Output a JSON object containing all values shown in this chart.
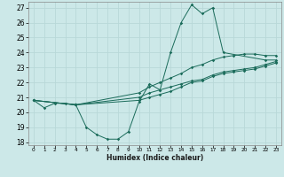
{
  "title": "",
  "xlabel": "Humidex (Indice chaleur)",
  "ylabel": "",
  "bg_color": "#cce8e8",
  "grid_color": "#b8d8d8",
  "line_color": "#1a6b5a",
  "xlim": [
    -0.5,
    23.5
  ],
  "ylim": [
    17.8,
    27.4
  ],
  "xticks": [
    0,
    1,
    2,
    3,
    4,
    5,
    6,
    7,
    8,
    9,
    10,
    11,
    12,
    13,
    14,
    15,
    16,
    17,
    18,
    19,
    20,
    21,
    22,
    23
  ],
  "yticks": [
    18,
    19,
    20,
    21,
    22,
    23,
    24,
    25,
    26,
    27
  ],
  "series": [
    {
      "x": [
        0,
        1,
        2,
        3,
        4,
        5,
        6,
        7,
        8,
        9,
        10,
        11,
        12,
        13,
        14,
        15,
        16,
        17,
        18,
        22,
        23
      ],
      "y": [
        20.8,
        20.3,
        20.6,
        20.6,
        20.5,
        19.0,
        18.5,
        18.2,
        18.2,
        18.7,
        20.7,
        21.9,
        21.5,
        24.0,
        26.0,
        27.2,
        26.6,
        27.0,
        24.0,
        23.5,
        23.5
      ]
    },
    {
      "x": [
        0,
        4,
        10,
        11,
        12,
        13,
        14,
        15,
        16,
        17,
        18,
        19,
        20,
        21,
        22,
        23
      ],
      "y": [
        20.8,
        20.5,
        21.0,
        21.3,
        21.5,
        21.7,
        21.9,
        22.1,
        22.2,
        22.5,
        22.7,
        22.8,
        22.9,
        23.0,
        23.2,
        23.4
      ]
    },
    {
      "x": [
        0,
        4,
        10,
        11,
        12,
        13,
        14,
        15,
        16,
        17,
        18,
        19,
        20,
        21,
        22,
        23
      ],
      "y": [
        20.8,
        20.5,
        21.3,
        21.7,
        22.0,
        22.3,
        22.6,
        23.0,
        23.2,
        23.5,
        23.7,
        23.8,
        23.9,
        23.9,
        23.8,
        23.8
      ]
    },
    {
      "x": [
        0,
        4,
        10,
        11,
        12,
        13,
        14,
        15,
        16,
        17,
        18,
        19,
        20,
        21,
        22,
        23
      ],
      "y": [
        20.8,
        20.5,
        20.8,
        21.0,
        21.2,
        21.4,
        21.7,
        22.0,
        22.1,
        22.4,
        22.6,
        22.7,
        22.8,
        22.9,
        23.1,
        23.3
      ]
    }
  ]
}
